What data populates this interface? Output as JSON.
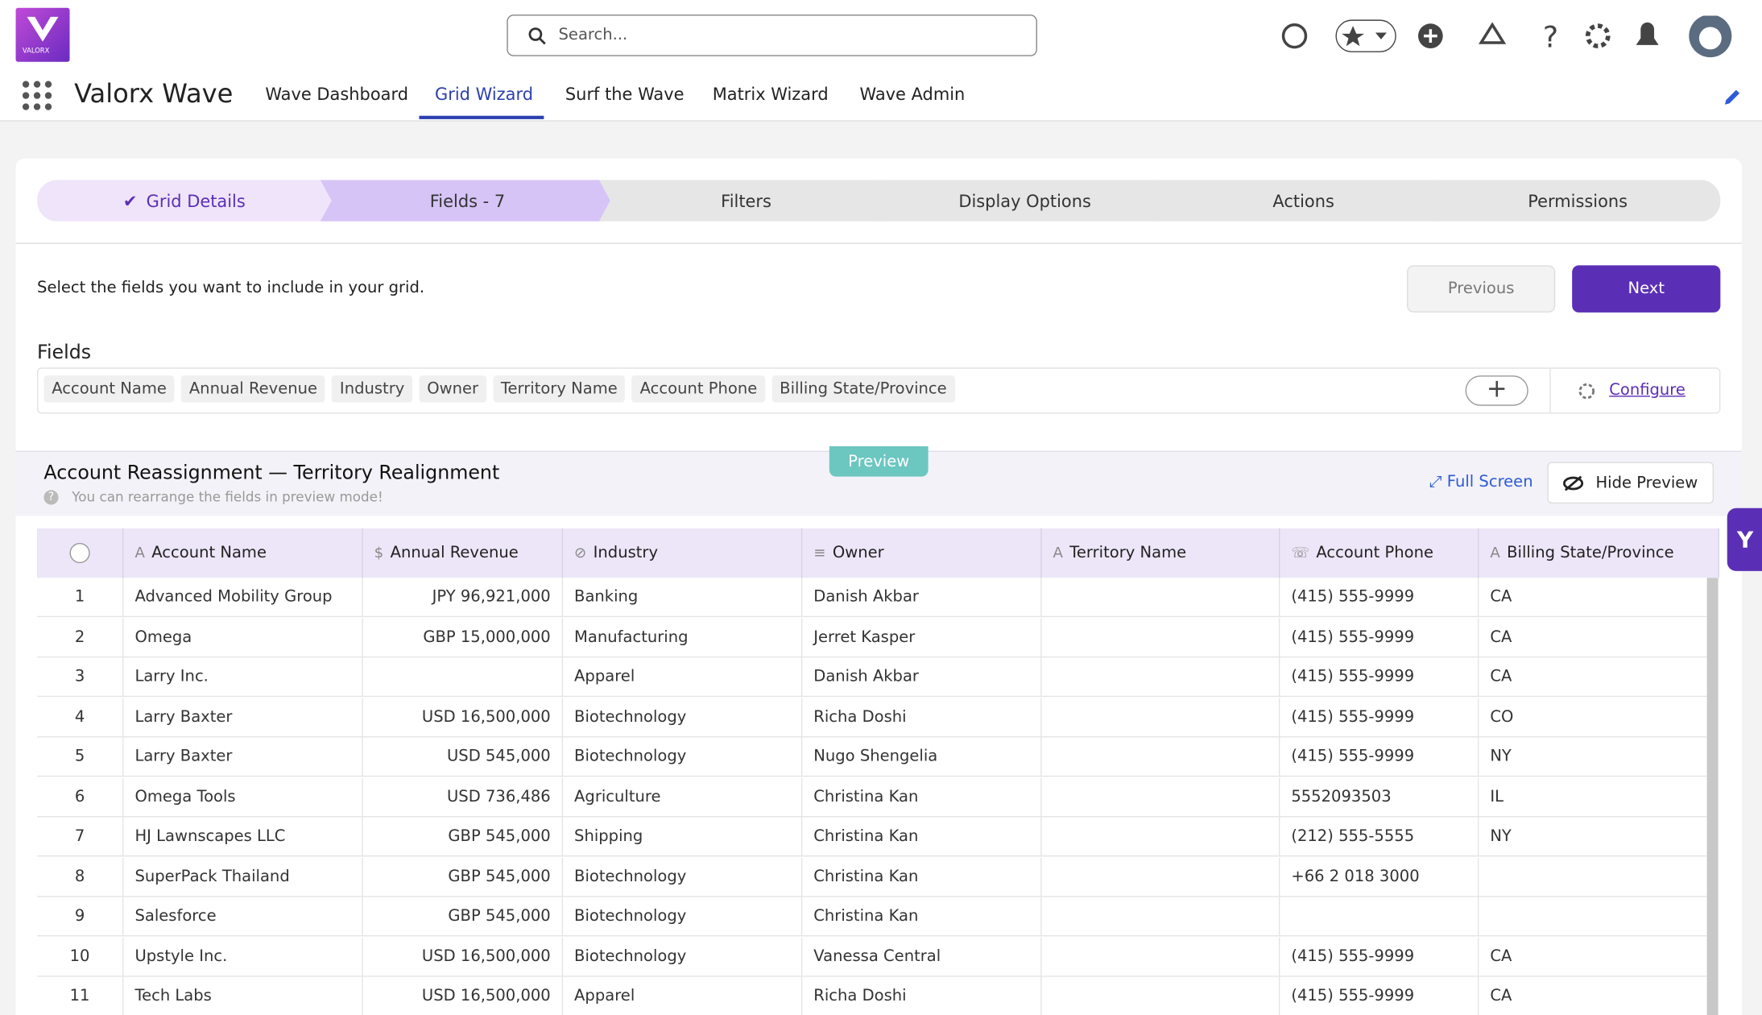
{
  "header": {
    "logo": "VALORX",
    "search_placeholder": "Search...",
    "app_name": "Valorx Wave",
    "nav": [
      "Wave Dashboard",
      "Grid Wizard",
      "Surf the Wave",
      "Matrix Wizard",
      "Wave Admin"
    ]
  },
  "wizard": {
    "steps": [
      "Grid Details",
      "Fields - 7",
      "Filters",
      "Display Options",
      "Actions",
      "Permissions"
    ],
    "instruction": "Select the fields you want to include in your grid.",
    "previous": "Previous",
    "next": "Next"
  },
  "fields": {
    "label": "Fields",
    "chips": [
      "Account Name",
      "Annual Revenue",
      "Industry",
      "Owner",
      "Territory Name",
      "Account Phone",
      "Billing State/Province"
    ],
    "configure": "Configure"
  },
  "preview": {
    "badge": "Preview",
    "title": "Account Reassignment — Territory Realignment",
    "hint": "You can rearrange the fields in preview mode!",
    "full_screen": "Full Screen",
    "hide_preview": "Hide Preview"
  },
  "table": {
    "columns": [
      "Account Name",
      "Annual Revenue",
      "Industry",
      "Owner",
      "Territory Name",
      "Account Phone",
      "Billing State/Province"
    ],
    "rows": [
      [
        "1",
        "Advanced Mobility Group",
        "JPY 96,921,000",
        "Banking",
        "Danish Akbar",
        null,
        "(415) 555-9999",
        "CA"
      ],
      [
        "2",
        "Omega",
        "GBP 15,000,000",
        "Manufacturing",
        "Jerret Kasper",
        null,
        "(415) 555-9999",
        "CA"
      ],
      [
        "3",
        "Larry Inc.",
        null,
        "Apparel",
        "Danish Akbar",
        null,
        "(415) 555-9999",
        "CA"
      ],
      [
        "4",
        "Larry Baxter",
        "USD 16,500,000",
        "Biotechnology",
        "Richa Doshi",
        null,
        "(415) 555-9999",
        "CO"
      ],
      [
        "5",
        "Larry Baxter",
        "USD 545,000",
        "Biotechnology",
        "Nugo Shengelia",
        null,
        "(415) 555-9999",
        "NY"
      ],
      [
        "6",
        "Omega Tools",
        "USD 736,486",
        "Agriculture",
        "Christina Kan",
        null,
        "5552093503",
        "IL"
      ],
      [
        "7",
        "HJ Lawnscapes LLC",
        "GBP 545,000",
        "Shipping",
        "Christina Kan",
        null,
        "(212) 555-5555",
        "NY"
      ],
      [
        "8",
        "SuperPack Thailand",
        "GBP 545,000",
        "Biotechnology",
        "Christina Kan",
        null,
        "+66 2 018 3000",
        null
      ],
      [
        "9",
        "Salesforce",
        "GBP 545,000",
        "Biotechnology",
        "Christina Kan",
        null,
        null,
        null
      ],
      [
        "10",
        "Upstyle Inc.",
        "USD 16,500,000",
        "Biotechnology",
        "Vanessa Central",
        null,
        "(415) 555-9999",
        "CA"
      ],
      [
        "11",
        "Tech Labs",
        "USD 16,500,000",
        "Apparel",
        "Richa Doshi",
        null,
        "(415) 555-9999",
        "CA"
      ]
    ]
  }
}
